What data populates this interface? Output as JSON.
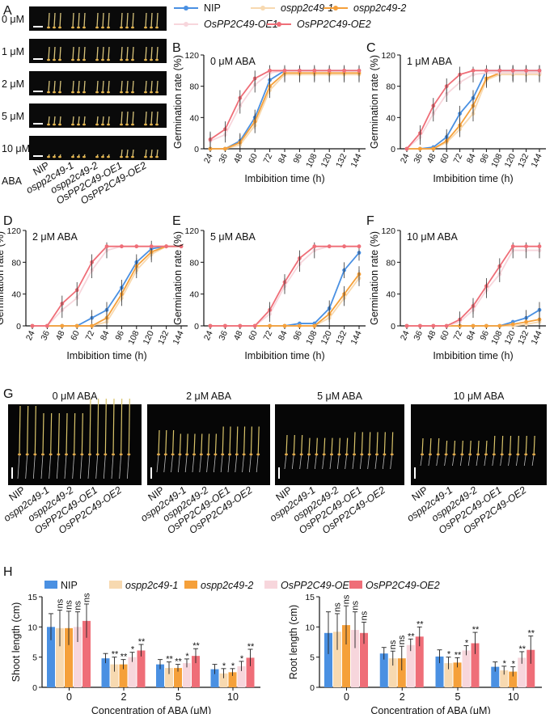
{
  "colors": {
    "NIP": "#4a90e2",
    "ospp2c49-1": "#f7d9b0",
    "ospp2c49-2": "#f5a03a",
    "OsPP2C49-OE1": "#f7d6dc",
    "OsPP2C49-OE2": "#ef6e78"
  },
  "panel_letters": [
    "A",
    "B",
    "C",
    "D",
    "E",
    "F",
    "G",
    "H"
  ],
  "genotypes": [
    "NIP",
    "ospp2c49-1",
    "ospp2c49-2",
    "OsPP2C49-OE1",
    "OsPP2C49-OE2"
  ],
  "panelA": {
    "concentrations": [
      "0 μM",
      "1 μM",
      "2 μM",
      "5 μM",
      "10 μM"
    ],
    "last_suffix": "ABA"
  },
  "legend": [
    "NIP",
    "ospp2c49-1",
    "ospp2c49-2",
    "OsPP2C49-OE1",
    "OsPP2C49-OE2"
  ],
  "chart_data": [
    {
      "id": "B",
      "type": "line",
      "title": "0 μM ABA",
      "xlabel": "Imbibition time (h)",
      "ylabel": "Germination rate (%)",
      "x": [
        24,
        36,
        48,
        60,
        72,
        84,
        96,
        108,
        120,
        132,
        144
      ],
      "ylim": [
        0,
        120
      ],
      "yticks": [
        0,
        40,
        80,
        120
      ],
      "series": [
        {
          "name": "NIP",
          "values": [
            0,
            0,
            10,
            40,
            88,
            100,
            100,
            100,
            100,
            100,
            100
          ]
        },
        {
          "name": "ospp2c49-1",
          "values": [
            0,
            0,
            5,
            30,
            75,
            95,
            95,
            95,
            95,
            95,
            95
          ]
        },
        {
          "name": "ospp2c49-2",
          "values": [
            0,
            0,
            8,
            35,
            80,
            97,
            97,
            97,
            97,
            97,
            97
          ]
        },
        {
          "name": "OsPP2C49-OE1",
          "values": [
            10,
            18,
            55,
            82,
            97,
            100,
            100,
            100,
            100,
            100,
            100
          ]
        },
        {
          "name": "OsPP2C49-OE2",
          "values": [
            12,
            25,
            65,
            90,
            100,
            100,
            100,
            100,
            100,
            100,
            100
          ]
        }
      ]
    },
    {
      "id": "C",
      "type": "line",
      "title": "1 μM ABA",
      "xlabel": "Imbibition time (h)",
      "ylabel": "Germination rate (%)",
      "x": [
        24,
        36,
        48,
        60,
        72,
        84,
        96,
        108,
        120,
        132,
        144
      ],
      "ylim": [
        0,
        120
      ],
      "yticks": [
        0,
        40,
        80,
        120
      ],
      "series": [
        {
          "name": "NIP",
          "values": [
            0,
            0,
            2,
            15,
            45,
            65,
            100,
            100,
            100,
            100,
            100
          ]
        },
        {
          "name": "ospp2c49-1",
          "values": [
            0,
            0,
            0,
            8,
            25,
            45,
            88,
            95,
            95,
            95,
            95
          ]
        },
        {
          "name": "ospp2c49-2",
          "values": [
            0,
            0,
            0,
            10,
            30,
            55,
            90,
            97,
            97,
            97,
            97
          ]
        },
        {
          "name": "OsPP2C49-OE1",
          "values": [
            0,
            15,
            45,
            70,
            85,
            95,
            97,
            97,
            97,
            97,
            97
          ]
        },
        {
          "name": "OsPP2C49-OE2",
          "values": [
            0,
            20,
            55,
            80,
            95,
            100,
            100,
            100,
            100,
            100,
            100
          ]
        }
      ]
    },
    {
      "id": "D",
      "type": "line",
      "title": "2 μM ABA",
      "xlabel": "Imbibition time (h)",
      "ylabel": "Germination rate (%)",
      "x": [
        24,
        36,
        48,
        60,
        72,
        84,
        96,
        108,
        120,
        132,
        144
      ],
      "ylim": [
        0,
        120
      ],
      "yticks": [
        0,
        40,
        80,
        120
      ],
      "series": [
        {
          "name": "NIP",
          "values": [
            0,
            0,
            0,
            0,
            10,
            20,
            48,
            80,
            97,
            100,
            100
          ]
        },
        {
          "name": "ospp2c49-1",
          "values": [
            0,
            0,
            0,
            0,
            0,
            5,
            35,
            70,
            90,
            100,
            100
          ]
        },
        {
          "name": "ospp2c49-2",
          "values": [
            0,
            0,
            0,
            0,
            0,
            10,
            40,
            75,
            93,
            100,
            100
          ]
        },
        {
          "name": "OsPP2C49-OE1",
          "values": [
            0,
            0,
            20,
            35,
            70,
            95,
            100,
            100,
            100,
            100,
            100
          ]
        },
        {
          "name": "OsPP2C49-OE2",
          "values": [
            0,
            0,
            28,
            45,
            80,
            100,
            100,
            100,
            100,
            100,
            100
          ]
        }
      ]
    },
    {
      "id": "E",
      "type": "line",
      "title": "5 μM ABA",
      "xlabel": "Imbibition time (h)",
      "ylabel": "Germination rate (%)",
      "x": [
        24,
        36,
        48,
        60,
        72,
        84,
        96,
        108,
        120,
        132,
        144
      ],
      "ylim": [
        0,
        120
      ],
      "yticks": [
        0,
        40,
        80,
        120
      ],
      "series": [
        {
          "name": "NIP",
          "values": [
            0,
            0,
            0,
            0,
            0,
            0,
            3,
            3,
            22,
            70,
            92
          ]
        },
        {
          "name": "ospp2c49-1",
          "values": [
            0,
            0,
            0,
            0,
            0,
            0,
            0,
            0,
            10,
            35,
            60
          ]
        },
        {
          "name": "ospp2c49-2",
          "values": [
            0,
            0,
            0,
            0,
            0,
            0,
            0,
            0,
            15,
            40,
            65
          ]
        },
        {
          "name": "OsPP2C49-OE1",
          "values": [
            0,
            0,
            0,
            0,
            15,
            50,
            78,
            95,
            100,
            100,
            100
          ]
        },
        {
          "name": "OsPP2C49-OE2",
          "values": [
            0,
            0,
            0,
            0,
            20,
            55,
            85,
            100,
            100,
            100,
            100
          ]
        }
      ]
    },
    {
      "id": "F",
      "type": "line",
      "title": "10 μM ABA",
      "xlabel": "Imbibition time (h)",
      "ylabel": "Germination rate (%)",
      "x": [
        24,
        36,
        48,
        60,
        72,
        84,
        96,
        108,
        120,
        132,
        144
      ],
      "ylim": [
        0,
        120
      ],
      "yticks": [
        0,
        40,
        80,
        120
      ],
      "series": [
        {
          "name": "NIP",
          "values": [
            0,
            0,
            0,
            0,
            0,
            0,
            0,
            0,
            5,
            10,
            20
          ]
        },
        {
          "name": "ospp2c49-1",
          "values": [
            0,
            0,
            0,
            0,
            0,
            0,
            0,
            0,
            0,
            2,
            5
          ]
        },
        {
          "name": "ospp2c49-2",
          "values": [
            0,
            0,
            0,
            0,
            0,
            0,
            0,
            0,
            2,
            5,
            8
          ]
        },
        {
          "name": "OsPP2C49-OE1",
          "values": [
            0,
            0,
            0,
            0,
            5,
            20,
            45,
            65,
            95,
            95,
            95
          ]
        },
        {
          "name": "OsPP2C49-OE2",
          "values": [
            0,
            0,
            0,
            0,
            8,
            25,
            50,
            75,
            100,
            100,
            100
          ]
        }
      ]
    },
    {
      "id": "H1",
      "type": "bar",
      "xlabel": "Concentration of ABA (μM)",
      "ylabel": "Shoot length (cm)",
      "categories": [
        "0",
        "2",
        "5",
        "10"
      ],
      "ylim": [
        0,
        15
      ],
      "yticks": [
        0,
        5,
        10,
        15
      ],
      "series": [
        {
          "name": "NIP",
          "values": [
            10,
            4.8,
            3.8,
            3.0
          ],
          "errors": [
            2.2,
            0.8,
            0.8,
            0.8
          ]
        },
        {
          "name": "ospp2c49-1",
          "values": [
            9.8,
            3.8,
            3.2,
            2.3
          ],
          "errors": [
            3,
            1.2,
            1,
            0.8
          ]
        },
        {
          "name": "ospp2c49-2",
          "values": [
            9.8,
            3.8,
            3.2,
            2.5
          ],
          "errors": [
            2.8,
            0.8,
            0.6,
            0.6
          ]
        },
        {
          "name": "OsPP2C49-OE1",
          "values": [
            10,
            5,
            4,
            3.5
          ],
          "errors": [
            2.5,
            0.8,
            0.7,
            0.8
          ]
        },
        {
          "name": "OsPP2C49-OE2",
          "values": [
            11,
            6.1,
            5.2,
            4.9
          ],
          "errors": [
            2.8,
            1,
            1.2,
            1.4
          ]
        }
      ],
      "annotations": [
        [
          "",
          "ns",
          "ns",
          "ns",
          "ns"
        ],
        [
          "",
          "**",
          "**",
          "*",
          "**"
        ],
        [
          "",
          "**",
          "**",
          "*",
          "**"
        ],
        [
          "",
          "*",
          "*",
          "*",
          "**"
        ]
      ]
    },
    {
      "id": "H2",
      "type": "bar",
      "xlabel": "Concentration of ABA (μM)",
      "ylabel": "Root length (cm)",
      "categories": [
        "0",
        "2",
        "5",
        "10"
      ],
      "ylim": [
        0,
        15
      ],
      "yticks": [
        0,
        5,
        10,
        15
      ],
      "series": [
        {
          "name": "NIP",
          "values": [
            9,
            5.6,
            5.1,
            3.4
          ],
          "errors": [
            3.5,
            1,
            1.1,
            0.8
          ]
        },
        {
          "name": "ospp2c49-1",
          "values": [
            9.2,
            4.8,
            4,
            2.8
          ],
          "errors": [
            3,
            1.2,
            1,
            0.7
          ]
        },
        {
          "name": "ospp2c49-2",
          "values": [
            10.3,
            4.8,
            4.1,
            2.6
          ],
          "errors": [
            3.2,
            2,
            0.8,
            0.8
          ]
        },
        {
          "name": "OsPP2C49-OE1",
          "values": [
            9.5,
            7,
            6.1,
            4.9
          ],
          "errors": [
            3,
            1,
            0.8,
            1
          ]
        },
        {
          "name": "OsPP2C49-OE2",
          "values": [
            9,
            8.4,
            7.3,
            6.2
          ],
          "errors": [
            1.8,
            1.6,
            1.8,
            2.3
          ]
        }
      ],
      "annotations": [
        [
          "",
          "ns",
          "ns",
          "ns",
          "ns"
        ],
        [
          "",
          "ns",
          "ns",
          "**",
          "**"
        ],
        [
          "",
          "*",
          "**",
          "*",
          "**"
        ],
        [
          "",
          "*",
          "*",
          "**",
          "**"
        ]
      ]
    }
  ],
  "panelG": {
    "titles": [
      "0 μM ABA",
      "2 μM ABA",
      "5 μM ABA",
      "10 μM ABA"
    ]
  }
}
